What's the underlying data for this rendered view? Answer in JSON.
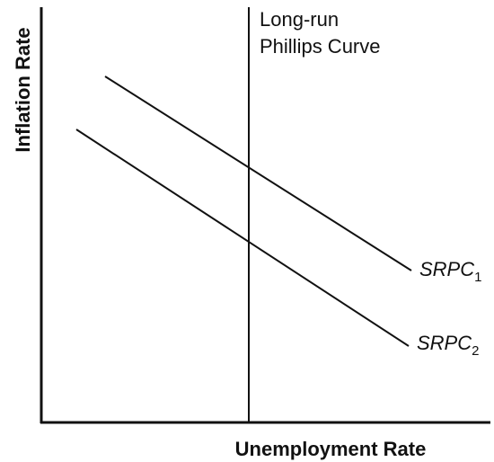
{
  "axes": {
    "y_label": "Inflation Rate",
    "x_label": "Unemployment Rate"
  },
  "long_run_curve": {
    "label_lines": [
      "Long-run",
      "Phillips Curve"
    ]
  },
  "short_run_curves": [
    {
      "text": "SRPC",
      "subscript": "1"
    },
    {
      "text": "SRPC",
      "subscript": "2"
    }
  ]
}
